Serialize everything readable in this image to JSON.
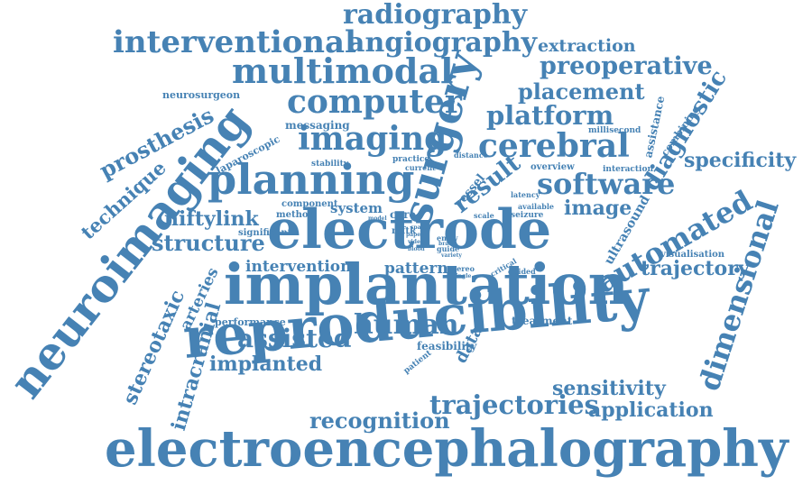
{
  "color": "#4682b4",
  "words": {
    "electroencephalography": "electroencephalography",
    "reproducibility": "reproducibility",
    "implantation": "implantation",
    "electrode": "electrode",
    "neuroimaging": "neuroimaging",
    "planning": "planning",
    "surgery": "surgery",
    "computer": "computer",
    "multimodal": "multimodal",
    "interventional": "interventional",
    "angiography": "angiography",
    "radiography": "radiography",
    "extraction": "extraction",
    "preoperative": "preoperative",
    "placement": "placement",
    "platform": "platform",
    "imaging": "imaging",
    "cerebral": "cerebral",
    "diagnostic": "diagnostic",
    "specificity": "specificity",
    "software": "software",
    "result": "result",
    "automated": "automated",
    "dimensional": "dimensional",
    "trajectory": "trajectory",
    "image": "image",
    "human": "human",
    "assisted": "assisted",
    "implanted": "implanted",
    "recognition": "recognition",
    "trajectories": "trajectories",
    "application": "application",
    "sensitivity": "sensitivity",
    "intracranial": "intracranial",
    "stereotaxic": "stereotaxic",
    "arteries": "arteries",
    "structure": "structure",
    "niftylink": "niftylink",
    "technique": "technique",
    "prosthesis": "prosthesis",
    "laparoscopic": "laparoscopic",
    "neurosurgeon": "neurosurgeon",
    "messaging": "messaging",
    "intervention": "intervention",
    "pattern": "pattern",
    "performance": "performance",
    "treatment": "treatment",
    "data": "data",
    "feasibility": "feasibility",
    "patient": "patient",
    "ultrasound": "ultrasound",
    "assistance": "assistance",
    "combining": "combining",
    "millisecond": "millisecond",
    "visualisation": "visualisation",
    "interaction": "interaction",
    "overview": "overview",
    "system": "system",
    "care": "care",
    "component": "component",
    "method": "method",
    "significant": "significant",
    "stability": "stability",
    "practice": "practice",
    "current": "current",
    "vessel": "vessel",
    "distance": "distance",
    "latency": "latency",
    "available": "available",
    "seizure": "seizure",
    "scale": "scale",
    "niftk": "niftk",
    "guide": "guide",
    "entry": "entry",
    "brain": "brain",
    "critical": "critical",
    "guided": "guided",
    "stereo": "stereo",
    "single": "single",
    "variety": "variety",
    "video": "video",
    "paper": "paper",
    "space": "space",
    "model": "model",
    "blood": "blood"
  }
}
